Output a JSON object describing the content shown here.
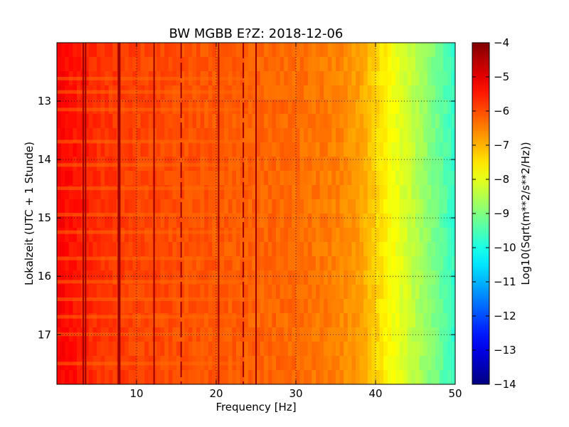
{
  "chart_data": {
    "type": "heatmap",
    "title": "BW MGBB E?Z: 2018-12-06",
    "xlabel": "Frequency [Hz]",
    "ylabel": "Lokalzeit (UTC + 1 Stunde)",
    "colorbar_label": "Log10(Sqrt(m**2/s**2/Hz))",
    "xlim": [
      0,
      50
    ],
    "ylim": [
      12.0,
      17.85
    ],
    "y_inverted": true,
    "x_ticks": [
      10,
      20,
      30,
      40,
      50
    ],
    "y_ticks": [
      13,
      14,
      15,
      16,
      17
    ],
    "clim": [
      -14,
      -4
    ],
    "colorbar_ticks": [
      -4,
      -5,
      -6,
      -7,
      -8,
      -9,
      -10,
      -11,
      -12,
      -13,
      -14
    ],
    "colormap": "jet",
    "grid": true,
    "spectral_profile": {
      "frequency_hz": [
        0,
        2,
        5,
        10,
        20,
        30,
        35,
        38,
        40,
        42,
        44,
        46,
        48,
        50
      ],
      "level": [
        -5.2,
        -5.4,
        -5.7,
        -5.9,
        -6.1,
        -6.3,
        -6.5,
        -6.8,
        -7.3,
        -7.8,
        -8.2,
        -8.7,
        -9.2,
        -9.8
      ]
    },
    "spectral_lines_hz": [
      3.3,
      3.6,
      7.8,
      12.2,
      15.6,
      20.3,
      23.4,
      25.0
    ],
    "events_time": [
      12.62,
      12.85,
      13.15,
      13.7,
      14.1,
      14.5,
      14.95,
      15.25,
      15.7,
      16.1,
      16.4,
      16.7,
      17.0,
      17.5
    ]
  }
}
